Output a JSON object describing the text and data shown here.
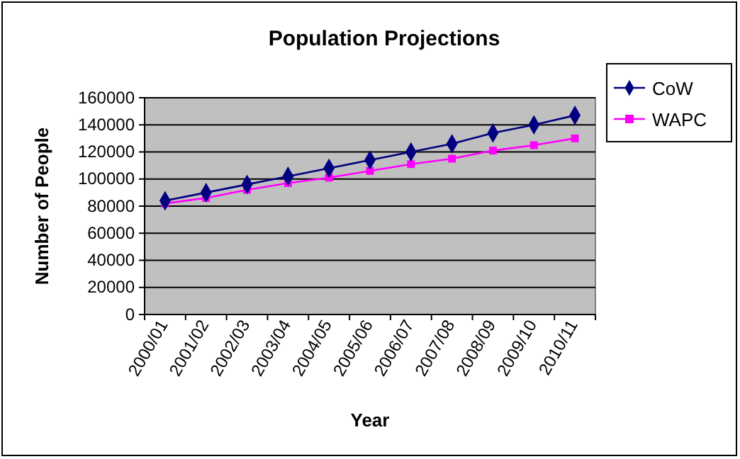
{
  "chart_data": {
    "type": "line",
    "title": "Population Projections",
    "xlabel": "Year",
    "ylabel": "Number of People",
    "categories": [
      "2000/01",
      "2001/02",
      "2002/03",
      "2003/04",
      "2004/05",
      "2005/06",
      "2006/07",
      "2007/08",
      "2008/09",
      "2009/10",
      "2010/11"
    ],
    "series": [
      {
        "name": "CoW",
        "color": "#000080",
        "marker": "diamond",
        "values": [
          84000,
          90000,
          96000,
          102000,
          108000,
          114000,
          120000,
          126000,
          134000,
          140000,
          147000
        ]
      },
      {
        "name": "WAPC",
        "color": "#ff00ff",
        "marker": "square",
        "values": [
          82000,
          86000,
          92000,
          97000,
          101000,
          106000,
          111000,
          115000,
          121000,
          125000,
          130000
        ]
      }
    ],
    "ylim": [
      0,
      160000
    ],
    "yticks": [
      0,
      20000,
      40000,
      60000,
      80000,
      100000,
      120000,
      140000,
      160000
    ],
    "grid": "y",
    "legend": "right",
    "line_style": "solid"
  }
}
